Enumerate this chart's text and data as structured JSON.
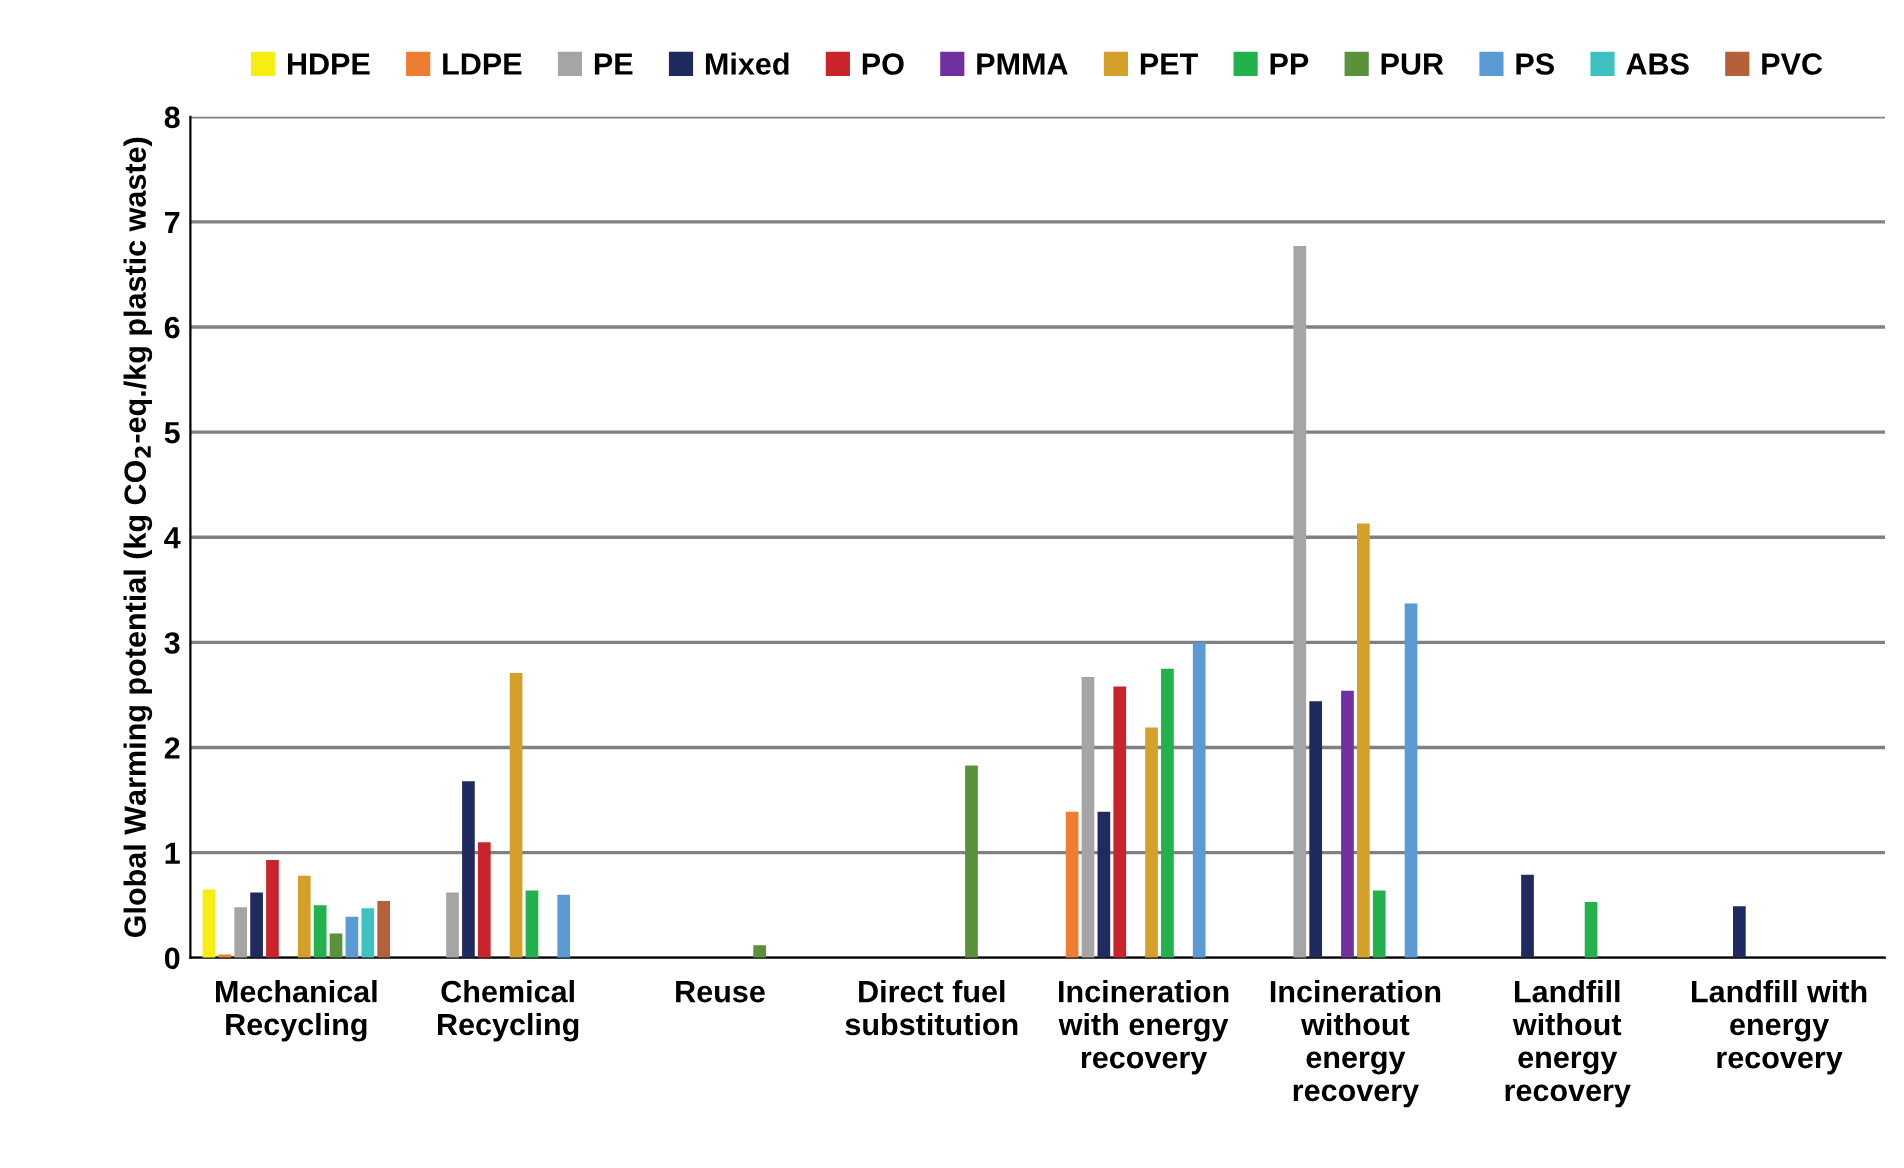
{
  "chart_data": {
    "type": "bar",
    "ylabel": "Global Warming potential (kg CO$_{2}$-eq./kg plastic waste)",
    "categories": [
      "Mechanical\nRecycling",
      "Chemical\nRecycling",
      "Reuse",
      "Direct fuel\nsubstitution",
      "Incineration\nwith energy\nrecovery",
      "Incineration\nwithout\nenergy\nrecovery",
      "Landfill\nwithout\nenergy\nrecovery",
      "Landfill with\nenergy\nrecovery"
    ],
    "series": [
      {
        "name": "HDPE",
        "color": "#f7ec13",
        "values": [
          0.65,
          null,
          null,
          null,
          null,
          null,
          null,
          null
        ]
      },
      {
        "name": "LDPE",
        "color": "#ed7d31",
        "values": [
          0.03,
          null,
          null,
          null,
          1.39,
          null,
          null,
          null
        ]
      },
      {
        "name": "PE",
        "color": "#a5a5a5",
        "values": [
          0.48,
          0.62,
          null,
          null,
          2.67,
          6.77,
          null,
          null
        ]
      },
      {
        "name": "Mixed",
        "color": "#1f2a5e",
        "values": [
          0.62,
          1.68,
          null,
          null,
          1.39,
          2.44,
          0.79,
          0.49
        ]
      },
      {
        "name": "PO",
        "color": "#c9242b",
        "values": [
          0.93,
          1.1,
          null,
          null,
          2.58,
          null,
          null,
          null
        ]
      },
      {
        "name": "PMMA",
        "color": "#7030a0",
        "values": [
          null,
          null,
          null,
          null,
          null,
          2.54,
          null,
          null
        ]
      },
      {
        "name": "PET",
        "color": "#d4a02a",
        "values": [
          0.78,
          2.71,
          null,
          null,
          2.19,
          4.13,
          null,
          null
        ]
      },
      {
        "name": "PP",
        "color": "#22b14c",
        "values": [
          0.5,
          0.64,
          null,
          null,
          2.75,
          0.64,
          0.53,
          null
        ]
      },
      {
        "name": "PUR",
        "color": "#5a913b",
        "values": [
          0.23,
          null,
          0.12,
          1.83,
          null,
          null,
          null,
          null
        ]
      },
      {
        "name": "PS",
        "color": "#5b9bd5",
        "values": [
          0.39,
          0.6,
          null,
          null,
          3.0,
          3.37,
          null,
          null
        ]
      },
      {
        "name": "ABS",
        "color": "#3ec1c1",
        "values": [
          0.47,
          null,
          null,
          null,
          null,
          null,
          null,
          null
        ]
      },
      {
        "name": "PVC",
        "color": "#b5603a",
        "values": [
          0.54,
          null,
          null,
          null,
          null,
          null,
          null,
          null
        ]
      }
    ],
    "ylim": [
      0,
      8
    ],
    "yticks": [
      0,
      1,
      2,
      3,
      4,
      5,
      6,
      7,
      8
    ],
    "grid": "y",
    "legend": "top"
  }
}
